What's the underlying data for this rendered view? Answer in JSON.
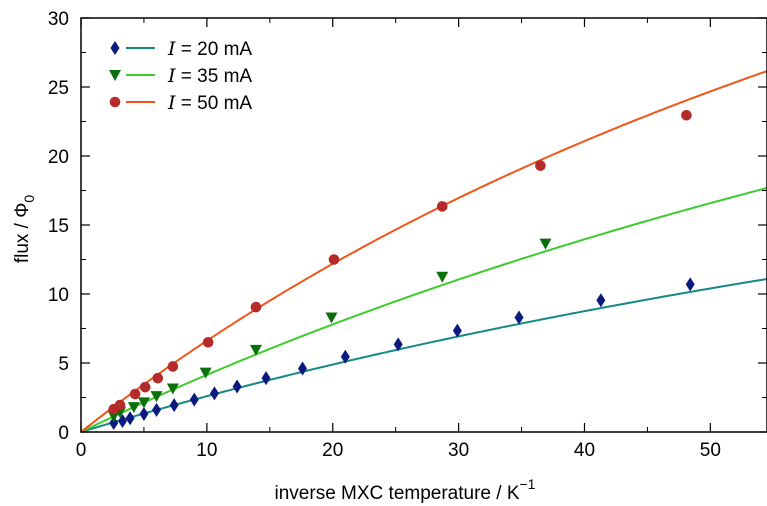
{
  "chart_data": {
    "type": "scatter",
    "xlabel": {
      "text": "inverse MXC temperature  /  K",
      "superscript": "−1"
    },
    "ylabel": {
      "text": "flux  /  Φ",
      "subscript": "0"
    },
    "xlim": [
      0,
      54.5
    ],
    "ylim": [
      0,
      30
    ],
    "xticks": [
      0,
      10,
      20,
      30,
      40,
      50
    ],
    "yticks": [
      0,
      5,
      10,
      15,
      20,
      25,
      30
    ],
    "grid": false,
    "legend_position": "top-left",
    "series": [
      {
        "name": "I = 20 mA",
        "legend_italic": "I",
        "legend_rest": " = 20 mA",
        "marker": "diamond",
        "marker_color": "#0b1a80",
        "line_color": "#148a88",
        "x": [
          2.6,
          3.3,
          3.9,
          5.0,
          6.0,
          7.4,
          9.0,
          10.6,
          12.4,
          14.7,
          17.6,
          21.0,
          25.2,
          29.9,
          34.8,
          41.3,
          48.4
        ],
        "y": [
          0.65,
          0.8,
          1.0,
          1.3,
          1.6,
          1.95,
          2.35,
          2.8,
          3.3,
          3.9,
          4.6,
          5.45,
          6.35,
          7.35,
          8.3,
          9.55,
          10.7
        ],
        "fit": {
          "a": 0.2767,
          "b": 0.0066
        }
      },
      {
        "name": "I = 35 mA",
        "legend_italic": "I",
        "legend_rest": " = 35 mA",
        "marker": "triangle-down",
        "marker_color": "#0b700b",
        "line_color": "#3ccc2c",
        "x": [
          2.6,
          3.1,
          4.2,
          5.0,
          6.0,
          7.3,
          9.9,
          13.9,
          19.9,
          28.7,
          36.9
        ],
        "y": [
          1.15,
          1.45,
          1.8,
          2.15,
          2.6,
          3.15,
          4.3,
          5.95,
          8.3,
          11.25,
          13.65
        ],
        "fit": {
          "a": 0.4415,
          "b": 0.00662
        }
      },
      {
        "name": "I = 50 mA",
        "legend_italic": "I",
        "legend_rest": " = 50 mA",
        "marker": "circle",
        "marker_color": "#b52a2a",
        "line_color": "#f25518",
        "x": [
          2.6,
          3.1,
          4.3,
          5.1,
          6.1,
          7.3,
          10.1,
          13.9,
          20.1,
          28.7,
          36.5,
          48.1
        ],
        "y": [
          1.65,
          1.95,
          2.75,
          3.25,
          3.9,
          4.75,
          6.5,
          9.05,
          12.5,
          16.35,
          19.3,
          22.95
        ],
        "fit": {
          "a": 0.7226,
          "b": 0.00928
        }
      }
    ]
  }
}
